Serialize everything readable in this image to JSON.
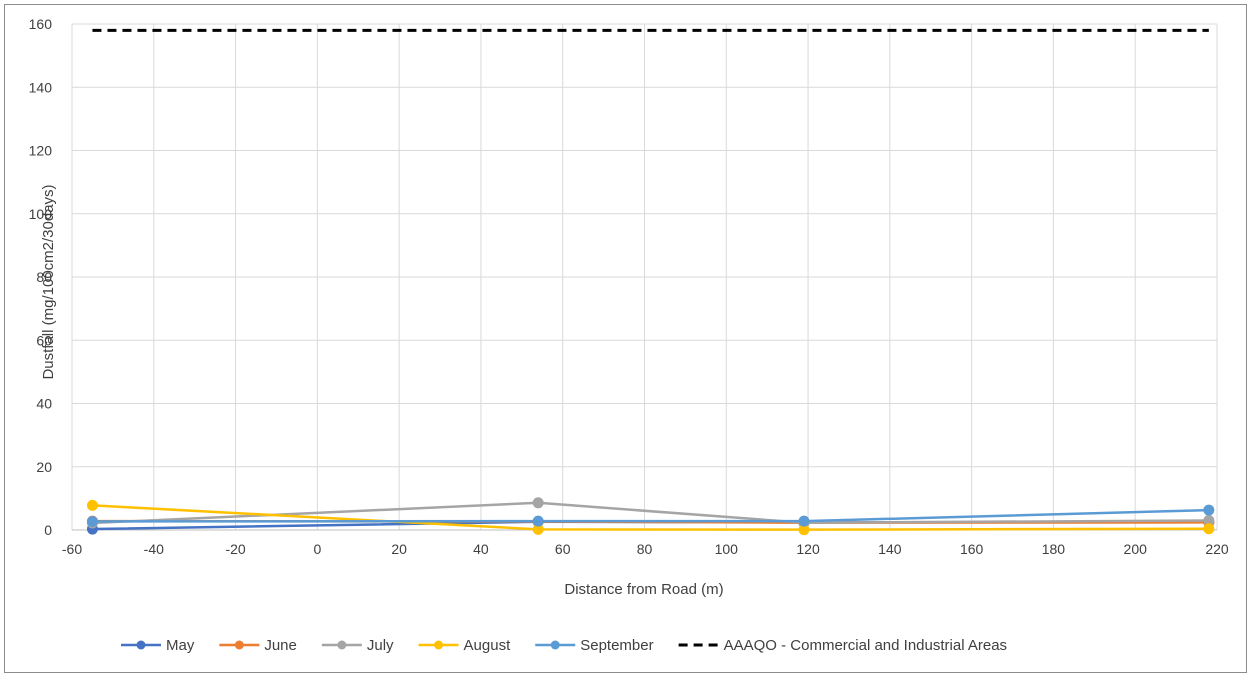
{
  "chart_data": {
    "type": "line",
    "title": "",
    "xlabel": "Distance from Road (m)",
    "ylabel": "Dustfall (mg/100cm2/30days)",
    "xlim": [
      -60,
      220
    ],
    "ylim": [
      0,
      160
    ],
    "xticks": [
      "-60",
      "-40",
      "-20",
      "0",
      "20",
      "40",
      "60",
      "80",
      "100",
      "120",
      "140",
      "160",
      "180",
      "200",
      "220"
    ],
    "yticks": [
      "0",
      "20",
      "40",
      "60",
      "80",
      "100",
      "120",
      "140",
      "160"
    ],
    "grid": "vertical and horizontal gridlines",
    "legend_position": "bottom",
    "series": [
      {
        "name": "May",
        "color": "#4472c4",
        "dash": false,
        "marker": true,
        "points": [
          [
            -55,
            0.3
          ],
          [
            54,
            2.6
          ],
          [
            119,
            2.4
          ],
          [
            218,
            2.6
          ]
        ]
      },
      {
        "name": "June",
        "color": "#ed7d31",
        "dash": false,
        "marker": true,
        "points": [
          [
            -55,
            2.8
          ],
          [
            54,
            2.7
          ],
          [
            119,
            2.3
          ],
          [
            218,
            2.4
          ]
        ]
      },
      {
        "name": "July",
        "color": "#a5a5a5",
        "dash": false,
        "marker": true,
        "points": [
          [
            -55,
            2.2
          ],
          [
            54,
            8.6
          ],
          [
            119,
            2.3
          ],
          [
            218,
            3.0
          ]
        ]
      },
      {
        "name": "August",
        "color": "#ffc000",
        "dash": false,
        "marker": true,
        "points": [
          [
            -55,
            7.8
          ],
          [
            54,
            0.2
          ],
          [
            119,
            0.1
          ],
          [
            218,
            0.4
          ]
        ]
      },
      {
        "name": "September",
        "color": "#5b9bd5",
        "dash": false,
        "marker": true,
        "points": [
          [
            -55,
            2.7
          ],
          [
            54,
            2.8
          ],
          [
            119,
            2.8
          ],
          [
            218,
            6.3
          ]
        ]
      },
      {
        "name": "AAAQO - Commercial and Industrial Areas",
        "color": "#000000",
        "dash": true,
        "marker": false,
        "points": [
          [
            -55,
            158
          ],
          [
            218,
            158
          ]
        ]
      }
    ]
  }
}
